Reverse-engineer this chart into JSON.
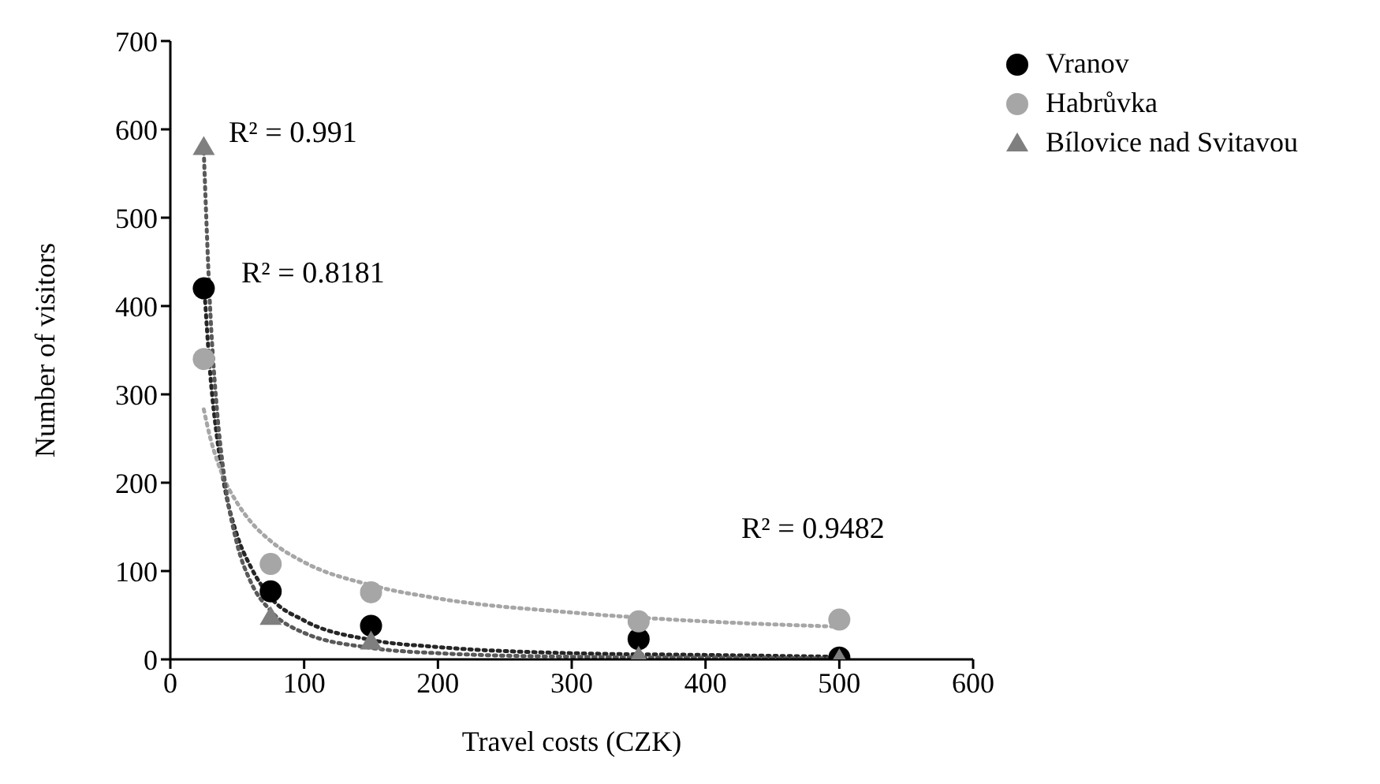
{
  "chart_data": {
    "type": "scatter",
    "xlabel": "Travel costs (CZK)",
    "ylabel": "Number of visitors",
    "xlim": [
      0,
      600
    ],
    "xticks": [
      0,
      100,
      200,
      300,
      400,
      500,
      600
    ],
    "ylim": [
      0,
      700
    ],
    "yticks": [
      0,
      100,
      200,
      300,
      400,
      500,
      600,
      700
    ],
    "grid": false,
    "legend": "top right",
    "x": [
      25,
      75,
      150,
      350,
      500
    ],
    "series": [
      {
        "name": "Vranov",
        "color": "#000000",
        "marker": "circle",
        "values": [
          420,
          77,
          38,
          23,
          2
        ]
      },
      {
        "name": "Habrůvka",
        "color": "#a6a6a6",
        "marker": "circle",
        "values": [
          340,
          108,
          76,
          43,
          45
        ]
      },
      {
        "name": "Bílovice nad Svitavou",
        "color": "#7f7f7f",
        "marker": "triangle",
        "values": [
          580,
          48,
          20,
          3,
          0
        ]
      },
      {
        "type": "line",
        "color": "#262626",
        "marker": "none",
        "line_style": "dotted",
        "x": [
          25,
          30,
          35,
          40,
          50,
          60,
          75,
          100,
          150,
          200,
          300,
          400,
          500
        ],
        "values": [
          430,
          320,
          250,
          200,
          140,
          105,
          70,
          44,
          22,
          14,
          7,
          5,
          3
        ]
      },
      {
        "type": "line",
        "color": "#a6a6a6",
        "marker": "none",
        "line_style": "dotted",
        "x": [
          25,
          30,
          35,
          40,
          50,
          60,
          75,
          100,
          150,
          200,
          300,
          400,
          500
        ],
        "values": [
          283,
          250,
          225,
          205,
          177,
          156,
          134,
          110,
          84,
          69,
          53,
          43,
          37
        ]
      },
      {
        "type": "line",
        "color": "#595959",
        "marker": "none",
        "line_style": "dotted",
        "x": [
          25,
          30,
          35,
          40,
          50,
          60,
          75,
          100,
          150,
          200,
          300,
          400,
          500
        ],
        "values": [
          575,
          390,
          280,
          210,
          130,
          88,
          55,
          30,
          13,
          7,
          3,
          2,
          1
        ]
      }
    ],
    "annotations": [
      "R² = 0.991",
      "R² = 0.8181",
      "R² = 0.9482"
    ]
  }
}
